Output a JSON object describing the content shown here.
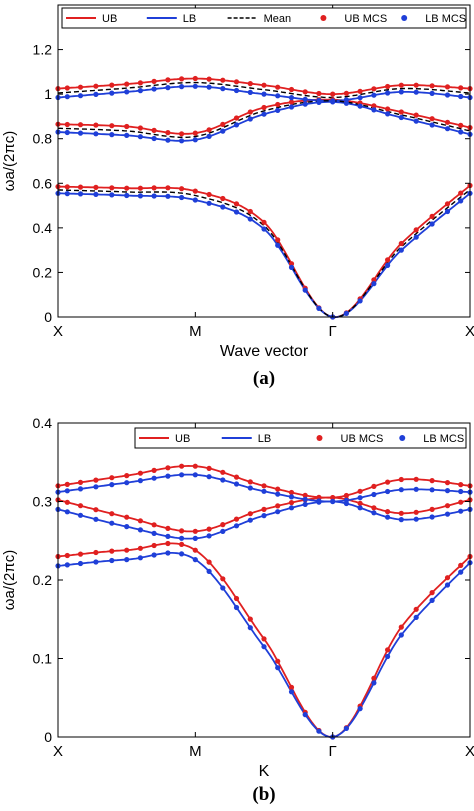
{
  "colors": {
    "ub": "#e02020",
    "lb": "#1f3fd8",
    "mean": "#000000",
    "axis": "#000000"
  },
  "panels": [
    {
      "caption": "(a)",
      "chart_data": {
        "type": "line",
        "title": "",
        "xlabel": "Wave vector",
        "ylabel": "ωa/(2πc)",
        "ylim": [
          0,
          1.4
        ],
        "xlim": [
          0,
          3
        ],
        "yticks": [
          0,
          0.2,
          0.4,
          0.6,
          0.8,
          1,
          1.2
        ],
        "ytick_labels": [
          "0",
          "0.2",
          "0.4",
          "0.6",
          "0.8",
          "1",
          "1.2"
        ],
        "x_ticks": [
          0,
          1,
          2,
          3
        ],
        "x_tick_labels": [
          "X",
          "M",
          "Γ",
          "X"
        ],
        "grid": false,
        "legend": [
          "UB",
          "LB",
          "Mean",
          "UB MCS",
          "LB MCS"
        ],
        "legend_position": "top",
        "series": [
          {
            "name": "UB",
            "style": "solid",
            "color": "ub",
            "bands": [
              {
                "x": [
                  0,
                  0.5,
                  1,
                  1.5,
                  2,
                  2.5,
                  3
                ],
                "y": [
                  0.585,
                  0.578,
                  0.565,
                  0.425,
                  0.0,
                  0.33,
                  0.59
                ]
              },
              {
                "x": [
                  0,
                  0.5,
                  1,
                  1.5,
                  2,
                  2.5,
                  3
                ],
                "y": [
                  0.865,
                  0.855,
                  0.825,
                  0.94,
                  0.975,
                  0.92,
                  0.85
                ]
              },
              {
                "x": [
                  0,
                  0.5,
                  1,
                  1.5,
                  2,
                  2.5,
                  3
                ],
                "y": [
                  1.025,
                  1.045,
                  1.07,
                  1.04,
                  1.0,
                  1.04,
                  1.025
                ]
              }
            ]
          },
          {
            "name": "LB",
            "style": "solid",
            "color": "lb",
            "bands": [
              {
                "x": [
                  0,
                  0.5,
                  1,
                  1.5,
                  2,
                  2.5,
                  3
                ],
                "y": [
                  0.555,
                  0.545,
                  0.525,
                  0.395,
                  0.0,
                  0.3,
                  0.555
                ]
              },
              {
                "x": [
                  0,
                  0.5,
                  1,
                  1.5,
                  2,
                  2.5,
                  3
                ],
                "y": [
                  0.83,
                  0.815,
                  0.795,
                  0.91,
                  0.965,
                  0.895,
                  0.82
                ]
              },
              {
                "x": [
                  0,
                  0.5,
                  1,
                  1.5,
                  2,
                  2.5,
                  3
                ],
                "y": [
                  0.985,
                  1.01,
                  1.035,
                  1.0,
                  0.97,
                  1.01,
                  0.985
                ]
              }
            ]
          },
          {
            "name": "Mean",
            "style": "dashed",
            "color": "mean",
            "bands": [
              {
                "x": [
                  0,
                  0.5,
                  1,
                  1.5,
                  2,
                  2.5,
                  3
                ],
                "y": [
                  0.57,
                  0.561,
                  0.545,
                  0.41,
                  0.0,
                  0.315,
                  0.572
                ]
              },
              {
                "x": [
                  0,
                  0.5,
                  1,
                  1.5,
                  2,
                  2.5,
                  3
                ],
                "y": [
                  0.847,
                  0.835,
                  0.81,
                  0.925,
                  0.97,
                  0.907,
                  0.835
                ]
              },
              {
                "x": [
                  0,
                  0.5,
                  1,
                  1.5,
                  2,
                  2.5,
                  3
                ],
                "y": [
                  1.005,
                  1.027,
                  1.052,
                  1.02,
                  0.985,
                  1.025,
                  1.005
                ]
              }
            ]
          }
        ],
        "markers": [
          {
            "name": "UB MCS",
            "color": "ub",
            "follows": "UB"
          },
          {
            "name": "LB MCS",
            "color": "lb",
            "follows": "LB"
          }
        ]
      }
    },
    {
      "caption": "(b)",
      "chart_data": {
        "type": "line",
        "title": "",
        "xlabel": "K",
        "ylabel": "ωa/(2πc)",
        "ylim": [
          0,
          0.4
        ],
        "xlim": [
          0,
          3
        ],
        "yticks": [
          0,
          0.1,
          0.2,
          0.3,
          0.4
        ],
        "ytick_labels": [
          "0",
          "0.1",
          "0.2",
          "0.3",
          "0.4"
        ],
        "x_ticks": [
          0,
          1,
          2,
          3
        ],
        "x_tick_labels": [
          "X",
          "M",
          "Γ",
          "X"
        ],
        "grid": false,
        "legend": [
          "UB",
          "LB",
          "UB MCS",
          "LB MCS"
        ],
        "legend_position": "top-right",
        "series": [
          {
            "name": "UB",
            "style": "solid",
            "color": "ub",
            "bands": [
              {
                "x": [
                  0,
                  0.5,
                  1,
                  1.5,
                  2,
                  2.5,
                  3
                ],
                "y": [
                  0.23,
                  0.238,
                  0.238,
                  0.125,
                  0.0,
                  0.14,
                  0.23
                ]
              },
              {
                "x": [
                  0,
                  0.5,
                  1,
                  1.5,
                  2,
                  2.5,
                  3
                ],
                "y": [
                  0.302,
                  0.28,
                  0.262,
                  0.29,
                  0.305,
                  0.285,
                  0.302
                ]
              },
              {
                "x": [
                  0,
                  0.5,
                  1,
                  1.5,
                  2,
                  2.5,
                  3
                ],
                "y": [
                  0.32,
                  0.333,
                  0.345,
                  0.32,
                  0.305,
                  0.328,
                  0.32
                ]
              }
            ]
          },
          {
            "name": "LB",
            "style": "solid",
            "color": "lb",
            "bands": [
              {
                "x": [
                  0,
                  0.5,
                  1,
                  1.5,
                  2,
                  2.5,
                  3
                ],
                "y": [
                  0.218,
                  0.226,
                  0.226,
                  0.115,
                  0.0,
                  0.13,
                  0.222
                ]
              },
              {
                "x": [
                  0,
                  0.5,
                  1,
                  1.5,
                  2,
                  2.5,
                  3
                ],
                "y": [
                  0.29,
                  0.268,
                  0.253,
                  0.282,
                  0.3,
                  0.277,
                  0.29
                ]
              },
              {
                "x": [
                  0,
                  0.5,
                  1,
                  1.5,
                  2,
                  2.5,
                  3
                ],
                "y": [
                  0.312,
                  0.324,
                  0.334,
                  0.313,
                  0.3,
                  0.315,
                  0.312
                ]
              }
            ]
          }
        ],
        "markers": [
          {
            "name": "UB MCS",
            "color": "ub",
            "follows": "UB"
          },
          {
            "name": "LB MCS",
            "color": "lb",
            "follows": "LB"
          }
        ]
      }
    }
  ]
}
